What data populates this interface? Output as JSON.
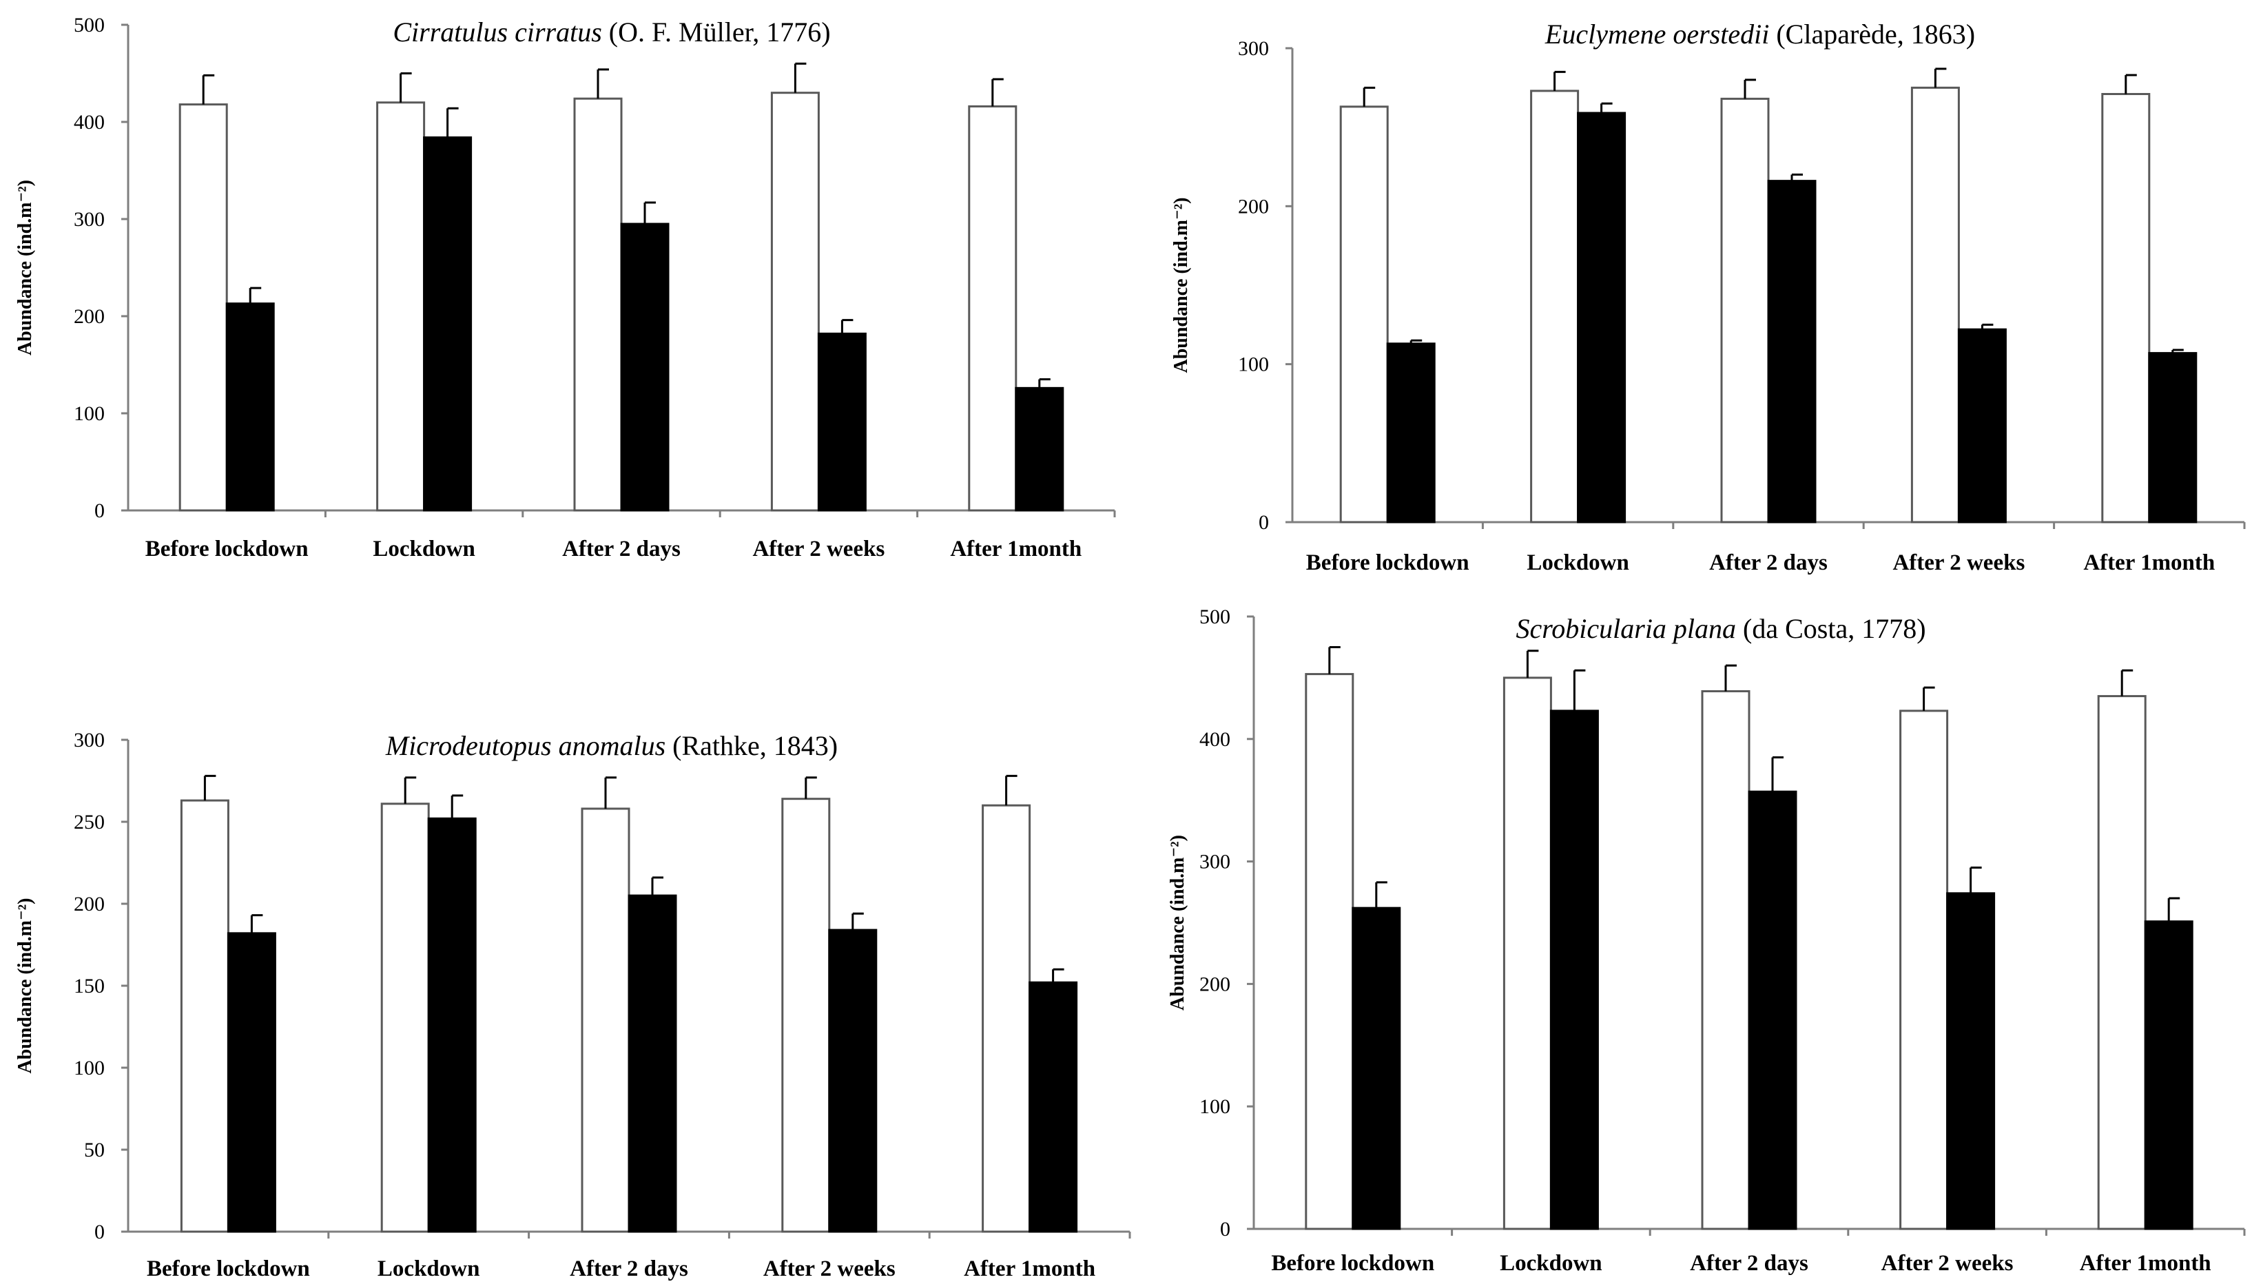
{
  "chart_data": [
    {
      "type": "bar",
      "title": {
        "species": "Cirratulus cirratus",
        "authority": " (O. F. Müller, 1776)"
      },
      "ylabel": "Abundance (ind.m⁻²)",
      "categories": [
        "Before lockdown",
        "Lockdown",
        "After 2 days",
        "After 2 weeks",
        "After 1month"
      ],
      "ylim": [
        0,
        500
      ],
      "yticks": [
        0,
        100,
        200,
        300,
        400,
        500
      ],
      "series": [
        {
          "name": "white",
          "fill": "#ffffff",
          "values": [
            418,
            420,
            424,
            430,
            416
          ],
          "errors": [
            30,
            30,
            30,
            30,
            28
          ]
        },
        {
          "name": "black",
          "fill": "#000000",
          "values": [
            213,
            384,
            295,
            182,
            126
          ],
          "errors": [
            16,
            30,
            22,
            14,
            9
          ]
        }
      ]
    },
    {
      "type": "bar",
      "title": {
        "species": "Euclymene oerstedii",
        "authority": " (Claparède, 1863)"
      },
      "ylabel": "Abundance (ind.m⁻²)",
      "categories": [
        "Before lockdown",
        "Lockdown",
        "After 2 days",
        "After 2 weeks",
        "After 1month"
      ],
      "ylim": [
        0,
        300
      ],
      "yticks": [
        0,
        100,
        200,
        300
      ],
      "series": [
        {
          "name": "white",
          "fill": "#ffffff",
          "values": [
            263,
            273,
            268,
            275,
            271
          ],
          "errors": [
            12,
            12,
            12,
            12,
            12
          ]
        },
        {
          "name": "black",
          "fill": "#000000",
          "values": [
            113,
            259,
            216,
            122,
            107
          ],
          "errors": [
            2,
            6,
            4,
            3,
            2
          ]
        }
      ]
    },
    {
      "type": "bar",
      "title": {
        "species": "Microdeutopus anomalus",
        "authority": " (Rathke, 1843)"
      },
      "ylabel": "Abundance (ind.m⁻²)",
      "categories": [
        "Before lockdown",
        "Lockdown",
        "After 2 days",
        "After 2 weeks",
        "After 1month"
      ],
      "ylim": [
        0,
        300
      ],
      "yticks": [
        0,
        50,
        100,
        150,
        200,
        250,
        300
      ],
      "series": [
        {
          "name": "white",
          "fill": "#ffffff",
          "values": [
            263,
            261,
            258,
            264,
            260
          ],
          "errors": [
            15,
            16,
            19,
            13,
            18
          ]
        },
        {
          "name": "black",
          "fill": "#000000",
          "values": [
            182,
            252,
            205,
            184,
            152
          ],
          "errors": [
            11,
            14,
            11,
            10,
            8
          ]
        }
      ]
    },
    {
      "type": "bar",
      "title": {
        "species": "Scrobicularia plana",
        "authority": " (da Costa, 1778)"
      },
      "ylabel": "Abundance (ind.m⁻²)",
      "categories": [
        "Before lockdown",
        "Lockdown",
        "After 2 days",
        "After 2 weeks",
        "After 1month"
      ],
      "ylim": [
        0,
        500
      ],
      "yticks": [
        0,
        100,
        200,
        300,
        400,
        500
      ],
      "series": [
        {
          "name": "white",
          "fill": "#ffffff",
          "values": [
            453,
            450,
            439,
            423,
            435
          ],
          "errors": [
            22,
            22,
            21,
            19,
            21
          ]
        },
        {
          "name": "black",
          "fill": "#000000",
          "values": [
            262,
            423,
            357,
            274,
            251
          ],
          "errors": [
            21,
            33,
            28,
            21,
            19
          ]
        }
      ]
    }
  ]
}
